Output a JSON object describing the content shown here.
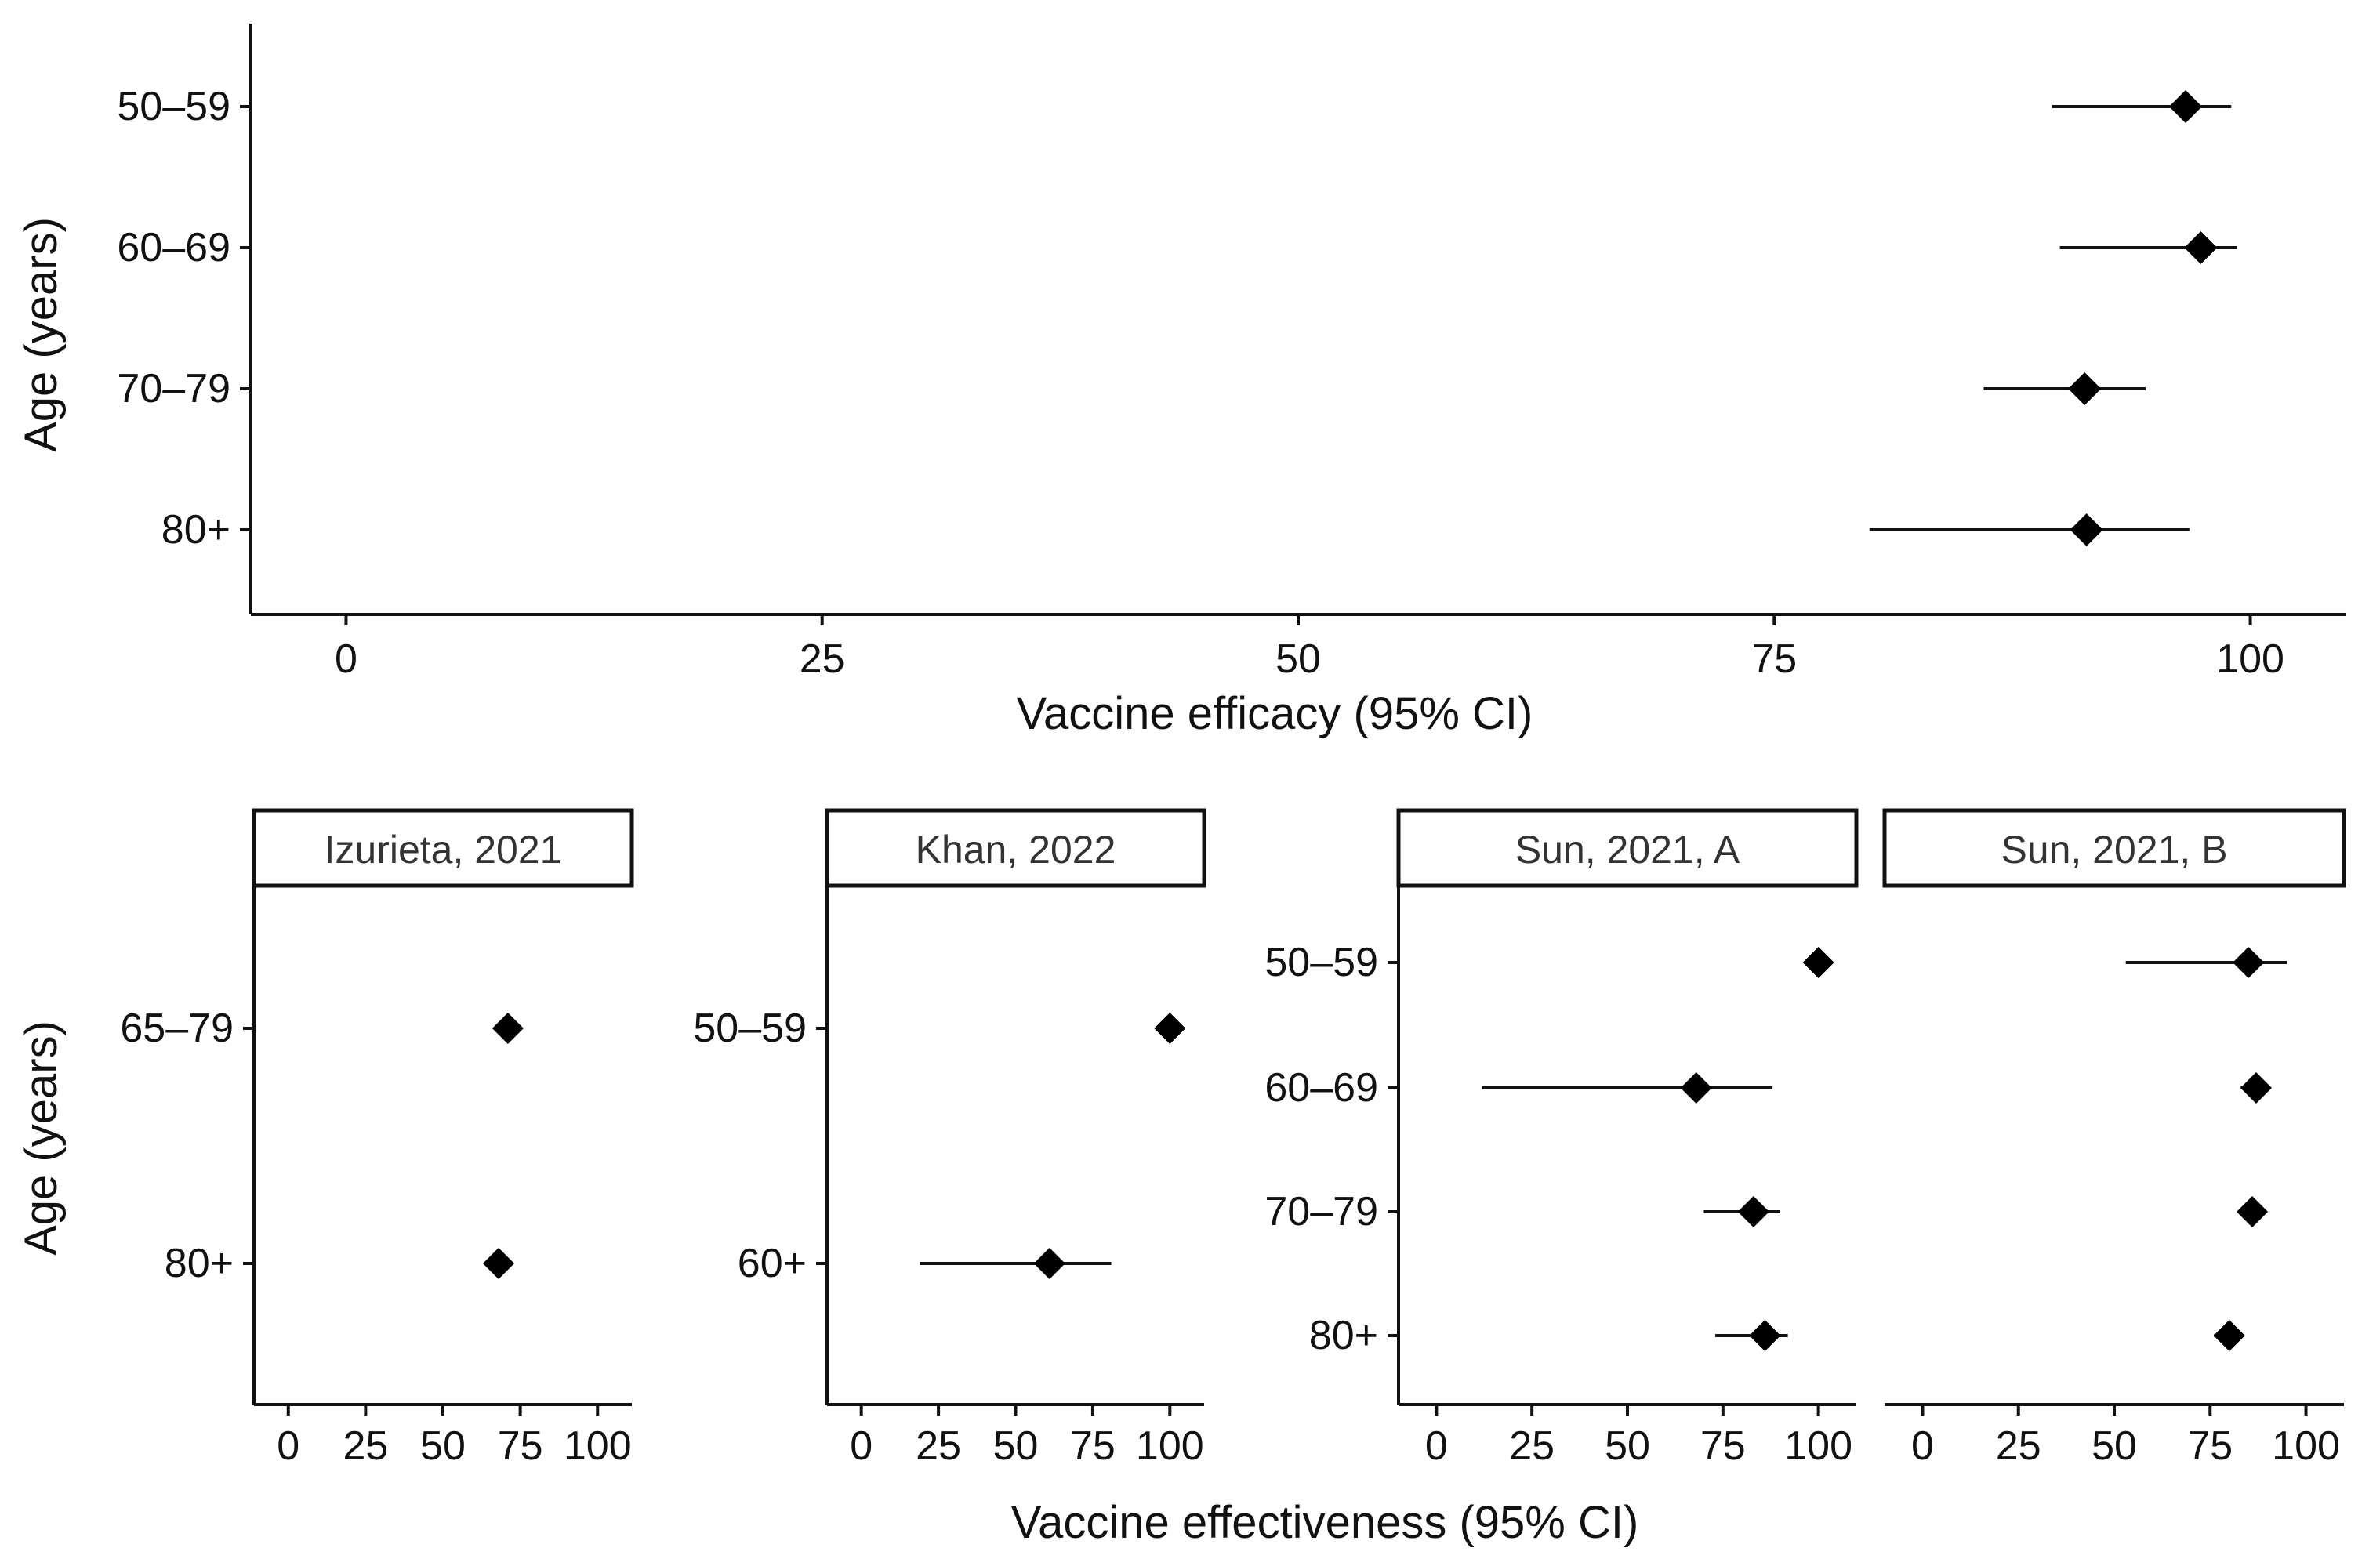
{
  "chart_data": [
    {
      "type": "forest",
      "title": "",
      "xlabel": "Vaccine efficacy (95% CI)",
      "ylabel": "Age (years)",
      "xlim": [
        -5,
        105
      ],
      "xticks": [
        0,
        25,
        50,
        75,
        100
      ],
      "categories": [
        "50–59",
        "60–69",
        "70–79",
        "80+"
      ],
      "points": [
        {
          "category": "50–59",
          "estimate": 96.6,
          "lower": 89.6,
          "upper": 99.0
        },
        {
          "category": "60–69",
          "estimate": 97.4,
          "lower": 90.0,
          "upper": 99.3
        },
        {
          "category": "70–79",
          "estimate": 91.3,
          "lower": 86.0,
          "upper": 94.5
        },
        {
          "category": "80+",
          "estimate": 91.4,
          "lower": 80.0,
          "upper": 96.8
        }
      ]
    },
    {
      "type": "forest-faceted",
      "xlabel": "Vaccine effectiveness (95% CI)",
      "ylabel": "Age (years)",
      "xlim": [
        -5,
        105
      ],
      "xticks": [
        0,
        25,
        50,
        75,
        100
      ],
      "panels": [
        {
          "label": "Izurieta, 2021",
          "categories": [
            "65–79",
            "80+"
          ],
          "points": [
            {
              "category": "65–79",
              "estimate": 71
            },
            {
              "category": "80+",
              "estimate": 68
            }
          ]
        },
        {
          "label": "Khan, 2022",
          "categories": [
            "50–59",
            "60+"
          ],
          "points": [
            {
              "category": "50–59",
              "estimate": 100
            },
            {
              "category": "60+",
              "estimate": 61,
              "lower": 19,
              "upper": 81
            }
          ]
        },
        {
          "label": "Sun, 2021, A",
          "categories": [
            "50–59",
            "60–69",
            "70–79",
            "80+"
          ],
          "points": [
            {
              "category": "50–59",
              "estimate": 100
            },
            {
              "category": "60–69",
              "estimate": 68,
              "lower": 12,
              "upper": 88
            },
            {
              "category": "70–79",
              "estimate": 83,
              "lower": 70,
              "upper": 90
            },
            {
              "category": "80+",
              "estimate": 86,
              "lower": 73,
              "upper": 92
            }
          ]
        },
        {
          "label": "Sun, 2021, B",
          "categories": [
            "50–59",
            "60–69",
            "70–79",
            "80+"
          ],
          "points": [
            {
              "category": "50–59",
              "estimate": 85,
              "lower": 53,
              "upper": 95
            },
            {
              "category": "60–69",
              "estimate": 87,
              "lower": 83,
              "upper": 89
            },
            {
              "category": "70–79",
              "estimate": 86,
              "lower": 84,
              "upper": 88
            },
            {
              "category": "80+",
              "estimate": 80,
              "lower": 76,
              "upper": 83
            }
          ]
        }
      ]
    }
  ]
}
